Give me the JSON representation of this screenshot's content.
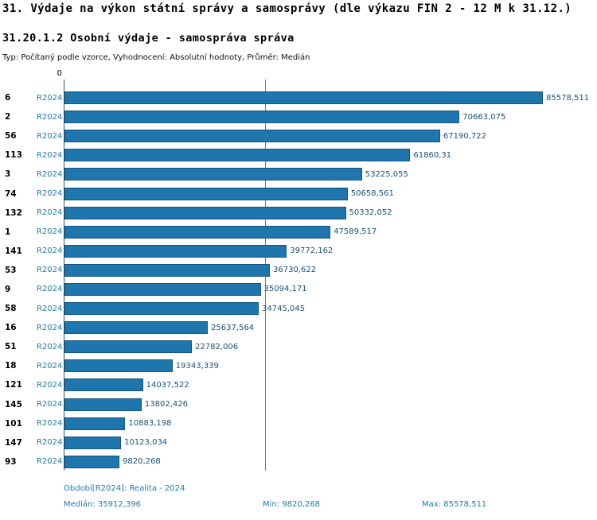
{
  "header": {
    "title": "31. Výdaje na výkon státní správy a samosprávy (dle výkazu FIN 2 - 12 M k 31.12.)",
    "subtitle": "31.20.1.2 Osobní výdaje - samospráva správa",
    "info_line": "Typ: Počítaný podle vzorce, Vyhodnocení: Absolutní hodnoty, Průměr: Medián"
  },
  "chart_data": {
    "type": "bar",
    "orientation": "horizontal",
    "axis_origin_label": "0",
    "series_label": "R2024",
    "categories": [
      "6",
      "2",
      "56",
      "113",
      "3",
      "74",
      "132",
      "1",
      "141",
      "53",
      "9",
      "58",
      "16",
      "51",
      "18",
      "121",
      "145",
      "101",
      "147",
      "93"
    ],
    "values": [
      85578.511,
      70663.075,
      67190.722,
      61860.31,
      53225.055,
      50658.561,
      50332.052,
      47589.517,
      39772.162,
      36730.622,
      35094.171,
      34745.045,
      25637.564,
      22782.006,
      19343.339,
      14037.522,
      13802.426,
      10883.198,
      10123.034,
      9820.268
    ],
    "value_labels": [
      "85578,511",
      "70663,075",
      "67190,722",
      "61860,31",
      "53225,055",
      "50658,561",
      "50332,052",
      "47589,517",
      "39772,162",
      "36730,622",
      "35094,171",
      "34745,045",
      "25637,564",
      "22782,006",
      "19343,339",
      "14037,522",
      "13802,426",
      "10883,198",
      "10123,034",
      "9820,268"
    ],
    "median": 35912.396,
    "xlim": [
      0,
      85578.511
    ],
    "grid": false,
    "legend_position": "none",
    "bar_color": "#1f76ad",
    "bar_border_color": "#14557e"
  },
  "footer": {
    "period": "Období[R2024]: Realita - 2024",
    "median": "Medián: 35912,396",
    "min": "Min: 9820,268",
    "max": "Max: 85578,511"
  }
}
